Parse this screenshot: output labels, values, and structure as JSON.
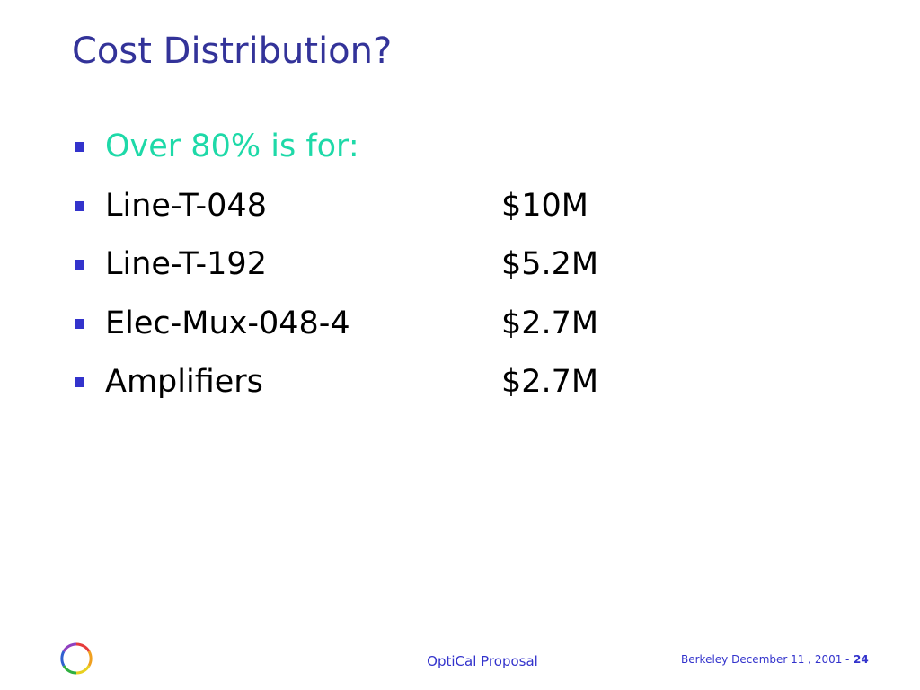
{
  "slide": {
    "title": "Cost Distribution?",
    "intro": "Over 80% is for:",
    "items": [
      {
        "label": "Line-T-048",
        "cost": "$10M"
      },
      {
        "label": "Line-T-192",
        "cost": "$5.2M"
      },
      {
        "label": "Elec-Mux-048-4",
        "cost": "$2.7M"
      },
      {
        "label": "Amplifiers",
        "cost": "$2.7M"
      }
    ],
    "footer": {
      "center": "OptiCal Proposal",
      "date": "Berkeley December 11 , 2001",
      "separator": "-",
      "page": "24"
    }
  }
}
